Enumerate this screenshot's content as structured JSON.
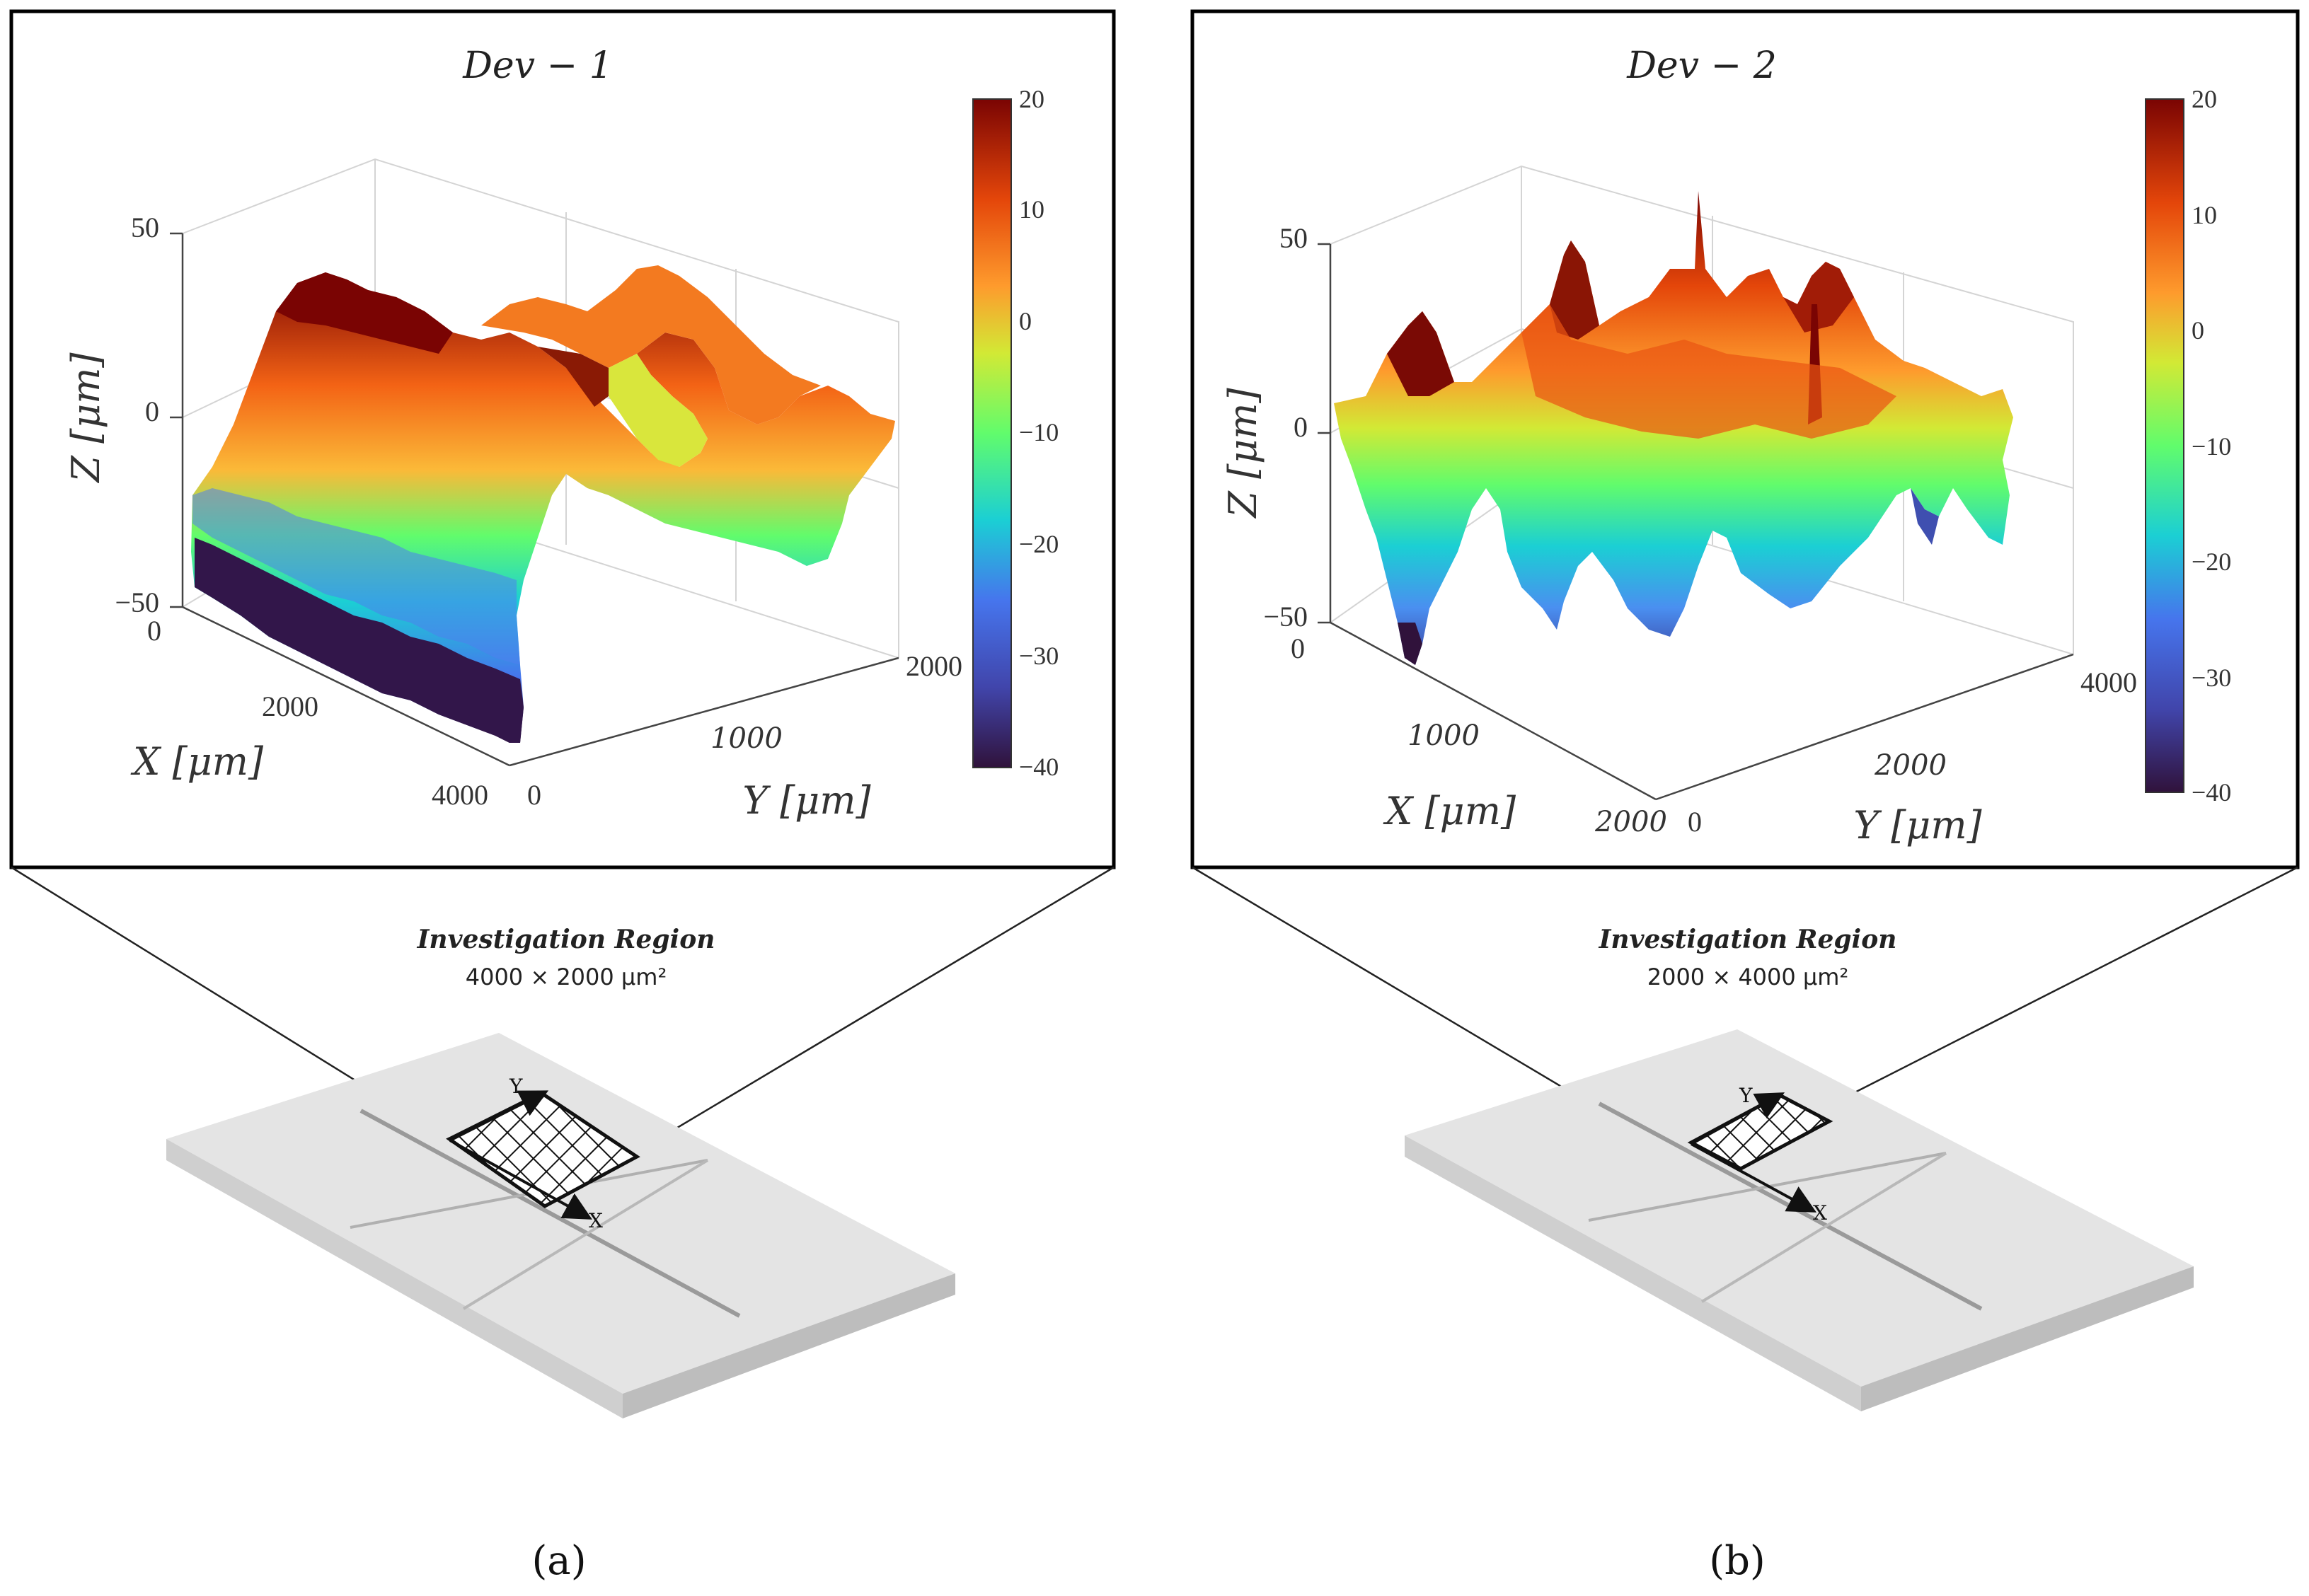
{
  "chart_data": [
    {
      "type": "surface3d",
      "panel": "(a)",
      "title": "Dev − 1",
      "xlabel": "X [μm]",
      "ylabel": "Y [μm]",
      "zlabel": "Z [μm]",
      "xlim": [
        0,
        4000
      ],
      "ylim": [
        0,
        2000
      ],
      "zlim": [
        -50,
        50
      ],
      "x_ticks": [
        "0",
        "2000",
        "4000"
      ],
      "y_ticks": [
        "0",
        "1000",
        "2000"
      ],
      "z_ticks": [
        "50",
        "0",
        "−50"
      ],
      "colorbar": {
        "range": [
          -40,
          20
        ],
        "ticks": [
          "20",
          "10",
          "0",
          "−10",
          "−20",
          "−30",
          "−40"
        ],
        "colormap": "turbo"
      },
      "surface": "height map: long ridge along Y reaching ~+20, deep trough ~−40 near X=0..4000 at Y=0 edge",
      "region": {
        "title": "Investigation Region",
        "size": "4000 × 2000 μm²"
      }
    },
    {
      "type": "surface3d",
      "panel": "(b)",
      "title": "Dev − 2",
      "xlabel": "X [μm]",
      "ylabel": "Y [μm]",
      "zlabel": "Z [μm]",
      "xlim": [
        0,
        2000
      ],
      "ylim": [
        0,
        4000
      ],
      "zlim": [
        -50,
        50
      ],
      "x_ticks": [
        "0",
        "1000",
        "2000"
      ],
      "y_ticks": [
        "0",
        "2000",
        "4000"
      ],
      "z_ticks": [
        "50",
        "0",
        "−50"
      ],
      "colorbar": {
        "range": [
          -40,
          20
        ],
        "ticks": [
          "20",
          "10",
          "0",
          "−10",
          "−20",
          "−30",
          "−40"
        ],
        "colormap": "turbo"
      },
      "surface": "rough height map with many peaks up to ~+20 and sharp spikes, valleys down to ~−40",
      "region": {
        "title": "Investigation Region",
        "size": "2000 × 4000 μm²"
      }
    }
  ],
  "colors": {
    "frame": "#000000",
    "plate": "#e2e2e2",
    "plate_side": "#c8c8c8"
  },
  "axis_arrow_labels": {
    "x": "X",
    "y": "Y"
  }
}
